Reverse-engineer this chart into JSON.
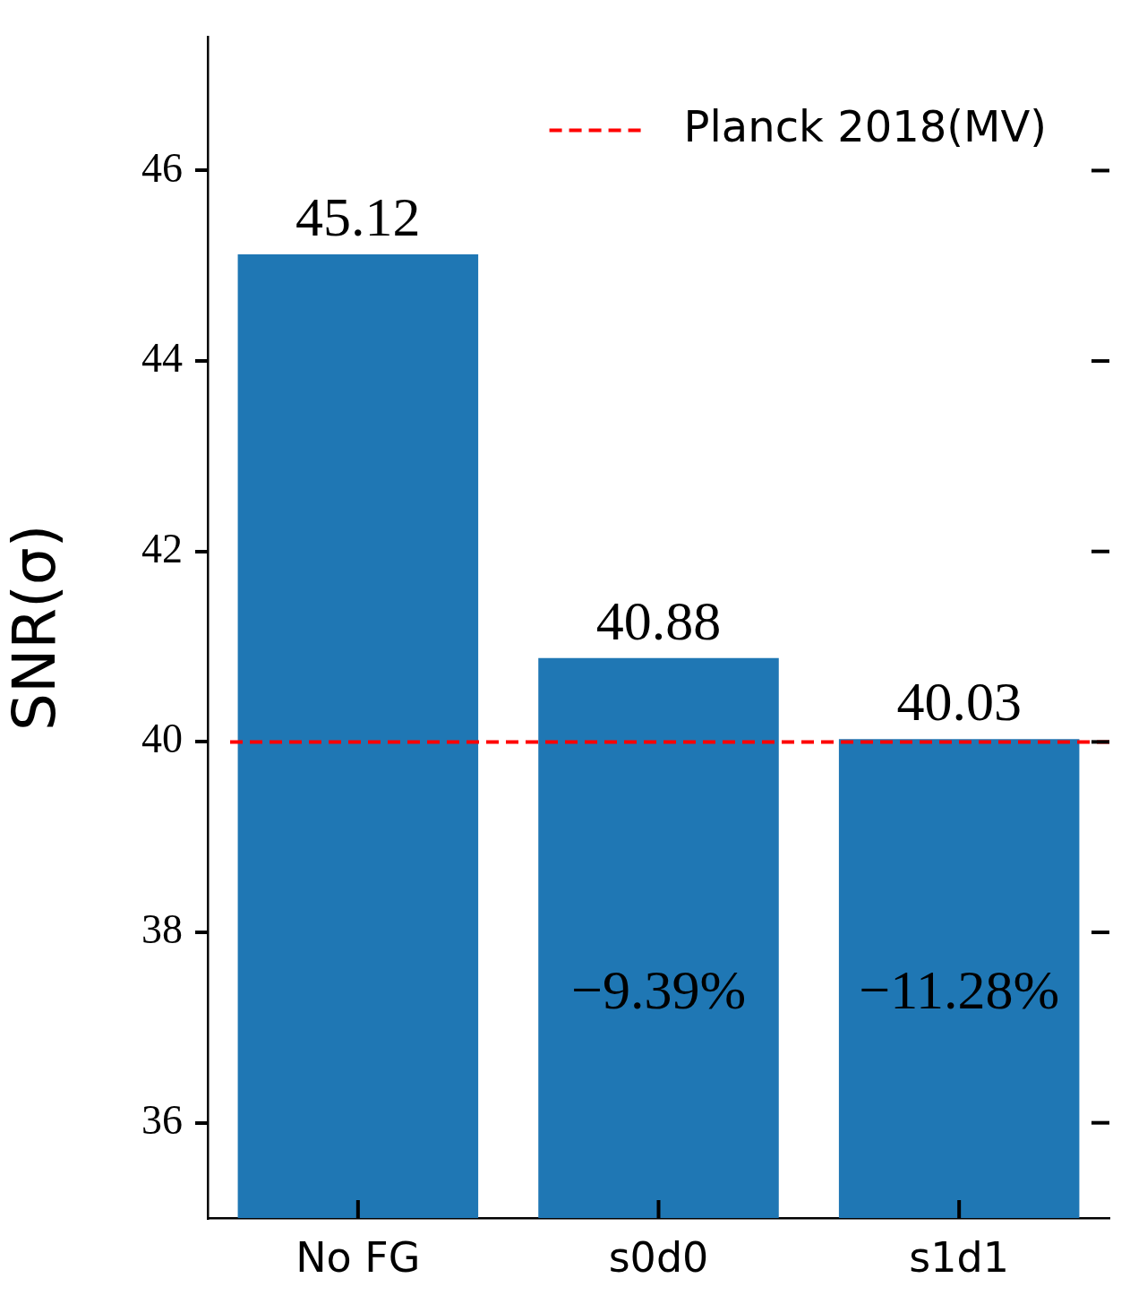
{
  "chart_data": {
    "type": "bar",
    "ylabel": "SNR(σ)",
    "categories": [
      "No FG",
      "s0d0",
      "s1d1"
    ],
    "values": [
      45.12,
      40.88,
      40.03
    ],
    "color": "#1f77b4",
    "data_labels": true,
    "ylim": [
      35,
      47.4
    ],
    "yticks": [
      36,
      38,
      40,
      42,
      44,
      46
    ],
    "ref_lines": [
      {
        "axis": "y",
        "value": 40,
        "label": "Planck 2018(MV)",
        "color": "#ff0000",
        "line_style": "dashed"
      }
    ],
    "legend": "top right",
    "annotations": [
      "−9.39%",
      "−11.28%"
    ]
  }
}
